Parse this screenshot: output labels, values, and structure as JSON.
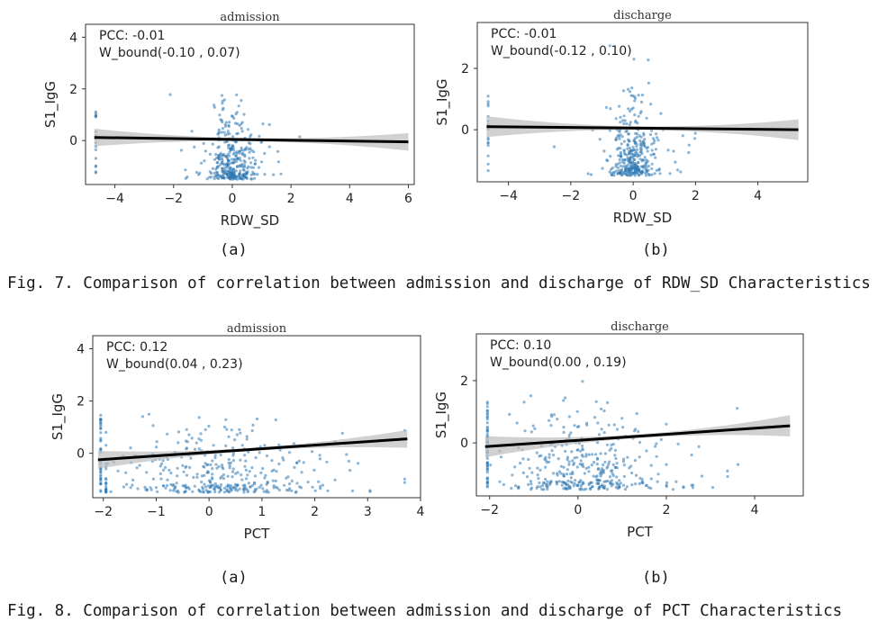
{
  "figures": [
    {
      "caption": "Fig. 7. Comparison of correlation between admission and discharge of RDW_SD Characteristics"
    },
    {
      "caption": "Fig. 8. Comparison of correlation between admission and discharge of PCT Characteristics"
    }
  ],
  "chart_data": [
    {
      "type": "scatter",
      "panel": "(a)",
      "title": "admission",
      "xlabel": "RDW_SD",
      "ylabel": "S1_IgG",
      "stats": {
        "pcc": "PCC: -0.01",
        "w_bound": "W_bound(-0.10   , 0.07)"
      },
      "xlim": [
        -5,
        6.2
      ],
      "ylim": [
        -1.7,
        4.5
      ],
      "xticks": [
        -4,
        -2,
        0,
        2,
        4,
        6
      ],
      "yticks": [
        0,
        2,
        4
      ],
      "regression": {
        "x": [
          -4.7,
          6
        ],
        "y": [
          0.12,
          -0.05
        ]
      },
      "cloud": {
        "center": 0,
        "spread": 0.35,
        "count": 380,
        "ymin": -1.5,
        "ymax": 3.8
      },
      "colors": {
        "points": "#2f78b3",
        "line": "#000000",
        "band": "#bdbdbd"
      }
    },
    {
      "type": "scatter",
      "panel": "(b)",
      "title": "discharge",
      "xlabel": "RDW_SD",
      "ylabel": "S1_IgG",
      "stats": {
        "pcc": "PCC: -0.01",
        "w_bound": "W_bound(-0.12 , 0.10)"
      },
      "xlim": [
        -5,
        5.6
      ],
      "ylim": [
        -1.7,
        3.5
      ],
      "xticks": [
        -4,
        -2,
        0,
        2,
        4
      ],
      "yticks": [
        0,
        2
      ],
      "regression": {
        "x": [
          -4.7,
          5.3
        ],
        "y": [
          0.1,
          0.0
        ]
      },
      "cloud": {
        "center": 0,
        "spread": 0.35,
        "count": 380,
        "ymin": -1.5,
        "ymax": 3.2
      },
      "colors": {
        "points": "#2f78b3",
        "line": "#000000",
        "band": "#bdbdbd"
      }
    },
    {
      "type": "scatter",
      "panel": "(a)",
      "title": "admission",
      "xlabel": "PCT",
      "ylabel": "S1_IgG",
      "stats": {
        "pcc": "PCC: 0.12",
        "w_bound": "W_bound(0.04  , 0.23)"
      },
      "xlim": [
        -2.2,
        4.0
      ],
      "ylim": [
        -1.7,
        4.5
      ],
      "xticks": [
        -2,
        -1,
        0,
        1,
        2,
        3,
        4
      ],
      "yticks": [
        0,
        2,
        4
      ],
      "regression": {
        "x": [
          -2.1,
          3.75
        ],
        "y": [
          -0.25,
          0.55
        ]
      },
      "cloud": {
        "center": 0.2,
        "spread": 0.9,
        "count": 420,
        "ymin": -1.5,
        "ymax": 3.0
      },
      "colors": {
        "points": "#2f78b3",
        "line": "#000000",
        "band": "#bdbdbd"
      }
    },
    {
      "type": "scatter",
      "panel": "(b)",
      "title": "discharge",
      "xlabel": "PCT",
      "ylabel": "S1_IgG",
      "stats": {
        "pcc": "PCC: 0.10",
        "w_bound": "W_bound(0.00  , 0.19)"
      },
      "xlim": [
        -2.3,
        5.1
      ],
      "ylim": [
        -1.7,
        3.5
      ],
      "xticks": [
        -2,
        0,
        2,
        4
      ],
      "yticks": [
        0,
        2
      ],
      "regression": {
        "x": [
          -2.1,
          4.8
        ],
        "y": [
          -0.12,
          0.55
        ]
      },
      "cloud": {
        "center": 0.2,
        "spread": 0.8,
        "count": 420,
        "ymin": -1.5,
        "ymax": 2.6
      },
      "colors": {
        "points": "#2f78b3",
        "line": "#000000",
        "band": "#bdbdbd"
      }
    }
  ]
}
